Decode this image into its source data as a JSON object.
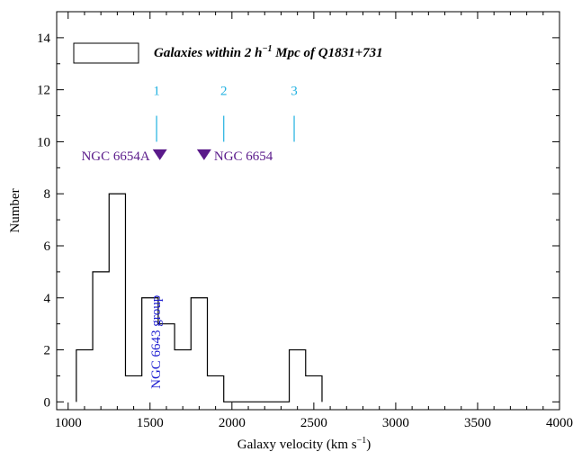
{
  "chart_data": {
    "type": "bar",
    "style": "step-histogram",
    "xlabel": "Galaxy velocity (km s",
    "xlabel_sup": "−1",
    "xlabel_end": ")",
    "ylabel": "Number",
    "xlim": [
      930,
      4000
    ],
    "ylim": [
      -0.3,
      15
    ],
    "xticks": [
      1000,
      1500,
      2000,
      2500,
      3000,
      3500,
      4000
    ],
    "yticks": [
      0,
      2,
      4,
      6,
      8,
      10,
      12,
      14
    ],
    "bin_width": 100,
    "bins": [
      {
        "x0": 1050,
        "x1": 1150,
        "value": 2
      },
      {
        "x0": 1150,
        "x1": 1250,
        "value": 5
      },
      {
        "x0": 1250,
        "x1": 1350,
        "value": 8
      },
      {
        "x0": 1350,
        "x1": 1450,
        "value": 1
      },
      {
        "x0": 1450,
        "x1": 1550,
        "value": 4
      },
      {
        "x0": 1550,
        "x1": 1650,
        "value": 3
      },
      {
        "x0": 1650,
        "x1": 1750,
        "value": 2
      },
      {
        "x0": 1750,
        "x1": 1850,
        "value": 4
      },
      {
        "x0": 1850,
        "x1": 1950,
        "value": 1
      },
      {
        "x0": 1950,
        "x1": 2050,
        "value": 0
      },
      {
        "x0": 2050,
        "x1": 2150,
        "value": 0
      },
      {
        "x0": 2150,
        "x1": 2250,
        "value": 0
      },
      {
        "x0": 2250,
        "x1": 2350,
        "value": 0
      },
      {
        "x0": 2350,
        "x1": 2450,
        "value": 2
      },
      {
        "x0": 2450,
        "x1": 2550,
        "value": 1
      }
    ],
    "legend": {
      "label_pre": "Galaxies within 2 ",
      "label_h": "h",
      "label_sup": "−1",
      "label_post": " Mpc of Q1831+731",
      "placement": "top-left"
    },
    "markers": [
      {
        "label": "1",
        "x": 1540,
        "color": "#1fb0e0"
      },
      {
        "label": "2",
        "x": 1950,
        "color": "#1fb0e0"
      },
      {
        "label": "3",
        "x": 2380,
        "color": "#1fb0e0"
      }
    ],
    "galaxies": [
      {
        "label": "NGC 6654A",
        "x": 1560,
        "y": 9.5,
        "label_side": "left",
        "color": "#5a1a8a"
      },
      {
        "label": "NGC 6654",
        "x": 1830,
        "y": 9.5,
        "label_side": "right",
        "color": "#5a1a8a"
      }
    ],
    "group_annotation": {
      "label": "NGC 6643 group",
      "x": 1540,
      "y": 0.5,
      "color": "#1a1ad0"
    }
  }
}
